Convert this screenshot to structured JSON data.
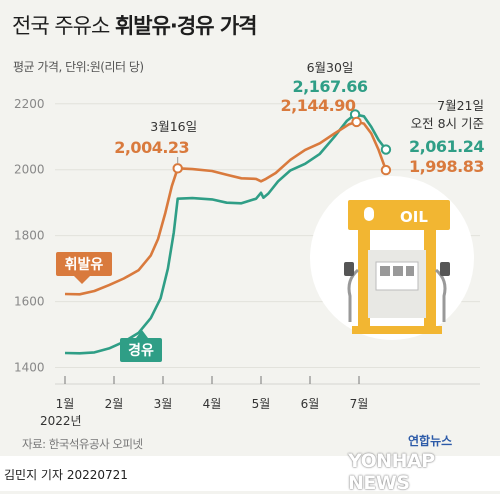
{
  "title": {
    "prefix": "전국 주유소 ",
    "bold": "휘발유·경유 가격"
  },
  "subtitle": "평균 가격, 단위:원(리터 당)",
  "source": "자료: 한국석유공사 오피넷",
  "byline": "김민지 기자  20220721",
  "logo": {
    "korean": "연합뉴스",
    "english": "YONHAP NEWS"
  },
  "colors": {
    "gasoline": "#d97a3d",
    "diesel": "#2f9e86",
    "grid": "#e2e2dc",
    "station_yellow": "#f2b632",
    "illustration_bg": "#ffffff"
  },
  "illustration": {
    "sign_text": "OIL",
    "icon": "gas-pump-icon"
  },
  "chart_data": {
    "type": "line",
    "y_ticks": [
      "1400",
      "1600",
      "1800",
      "2000",
      "2200"
    ],
    "ylim": [
      1350,
      2260
    ],
    "x_ticks": [
      {
        "label": "1월",
        "t": 0
      },
      {
        "label": "2월",
        "t": 1
      },
      {
        "label": "3월",
        "t": 2
      },
      {
        "label": "4월",
        "t": 3
      },
      {
        "label": "5월",
        "t": 4
      },
      {
        "label": "6월",
        "t": 5
      },
      {
        "label": "7월",
        "t": 6
      }
    ],
    "x_year_label": "2022년",
    "series": [
      {
        "name": "휘발유",
        "color": "#d97a3d",
        "points": [
          [
            0,
            1623
          ],
          [
            0.3,
            1622
          ],
          [
            0.6,
            1632
          ],
          [
            0.9,
            1650
          ],
          [
            1.2,
            1670
          ],
          [
            1.5,
            1695
          ],
          [
            1.75,
            1740
          ],
          [
            1.9,
            1790
          ],
          [
            2.05,
            1870
          ],
          [
            2.18,
            1950
          ],
          [
            2.3,
            2004.23
          ],
          [
            2.6,
            2002
          ],
          [
            3.0,
            1996
          ],
          [
            3.3,
            1985
          ],
          [
            3.6,
            1974
          ],
          [
            3.9,
            1972
          ],
          [
            4.0,
            1965
          ],
          [
            4.1,
            1972
          ],
          [
            4.3,
            1990
          ],
          [
            4.6,
            2030
          ],
          [
            4.9,
            2060
          ],
          [
            5.2,
            2080
          ],
          [
            5.5,
            2110
          ],
          [
            5.8,
            2138
          ],
          [
            5.95,
            2144.9
          ],
          [
            6.1,
            2140
          ],
          [
            6.25,
            2110
          ],
          [
            6.4,
            2060
          ],
          [
            6.55,
            1998.83
          ]
        ]
      },
      {
        "name": "경유",
        "color": "#2f9e86",
        "points": [
          [
            0,
            1444
          ],
          [
            0.3,
            1443
          ],
          [
            0.6,
            1446
          ],
          [
            0.9,
            1458
          ],
          [
            1.2,
            1478
          ],
          [
            1.5,
            1505
          ],
          [
            1.75,
            1550
          ],
          [
            1.95,
            1610
          ],
          [
            2.1,
            1700
          ],
          [
            2.22,
            1810
          ],
          [
            2.3,
            1912
          ],
          [
            2.6,
            1914
          ],
          [
            3.0,
            1910
          ],
          [
            3.3,
            1900
          ],
          [
            3.6,
            1898
          ],
          [
            3.9,
            1912
          ],
          [
            4.0,
            1930
          ],
          [
            4.05,
            1915
          ],
          [
            4.15,
            1928
          ],
          [
            4.35,
            1965
          ],
          [
            4.6,
            1998
          ],
          [
            4.9,
            2018
          ],
          [
            5.2,
            2048
          ],
          [
            5.5,
            2100
          ],
          [
            5.75,
            2148
          ],
          [
            5.92,
            2167.66
          ],
          [
            6.1,
            2162
          ],
          [
            6.25,
            2130
          ],
          [
            6.4,
            2090
          ],
          [
            6.55,
            2061.24
          ]
        ]
      }
    ],
    "annotations": [
      {
        "series": "휘발유",
        "date": "3월16일",
        "value": "2,004.23",
        "t": 2.3,
        "y": 2004.23
      },
      {
        "series": "경유",
        "date": "6월30일",
        "value": "2,167.66",
        "t": 5.92,
        "y": 2167.66
      },
      {
        "series": "휘발유",
        "date": "",
        "value": "2,144.90",
        "t": 5.95,
        "y": 2144.9
      },
      {
        "series": "경유",
        "date": "7월21일 오전 8시 기준",
        "value": "2,061.24",
        "t": 6.55,
        "y": 2061.24
      },
      {
        "series": "휘발유",
        "date": "",
        "value": "1,998.83",
        "t": 6.55,
        "y": 1998.83
      }
    ],
    "end_label_date_lines": [
      "7월21일",
      "오전 8시 기준"
    ],
    "series_labels": [
      {
        "text": "휘발유",
        "series": "휘발유"
      },
      {
        "text": "경유",
        "series": "경유"
      }
    ]
  }
}
